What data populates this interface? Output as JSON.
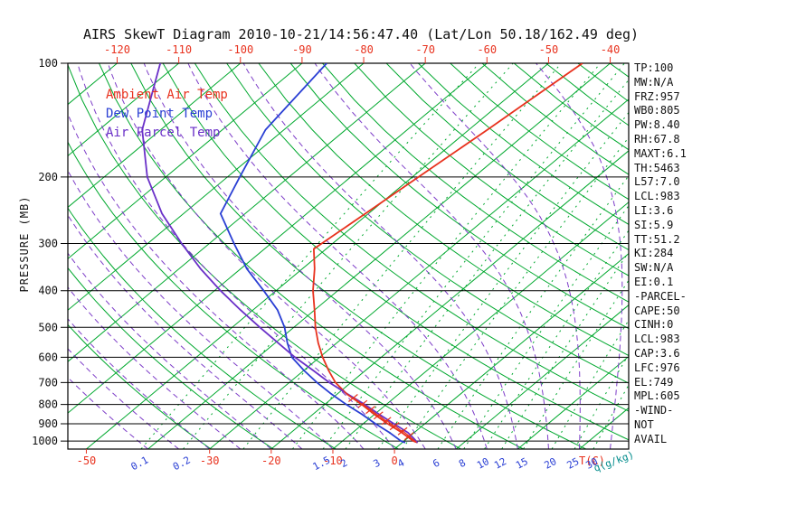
{
  "title": "AIRS SkewT Diagram 2010-10-21/14:56:47.40 (Lat/Lon 50.18/162.49 deg)",
  "legend": {
    "items": [
      {
        "label": "Ambient Air Temp",
        "color": "#e8321e"
      },
      {
        "label": "Dew Point Temp",
        "color": "#2a3fd4"
      },
      {
        "label": "Air Parcel Temp",
        "color": "#6a30c8"
      }
    ]
  },
  "axes": {
    "pressure_label": "PRESSURE (MB)",
    "pressure_ticks": [
      100,
      200,
      300,
      400,
      500,
      600,
      700,
      800,
      900,
      1000
    ],
    "top_temp_ticks": [
      -120,
      -110,
      -100,
      -90,
      -80,
      -70,
      -60,
      -50,
      -40
    ],
    "bottom_temp_ticks": [
      -50,
      -30,
      -20,
      -10,
      0
    ],
    "bottom_temp_unit": "T(C)",
    "mixing_ratio_ticks": [
      0.1,
      0.2,
      1.5,
      2,
      3,
      4,
      6,
      8,
      10,
      12,
      15,
      20,
      25,
      30
    ],
    "mixing_ratio_unit": "q(g/kg)"
  },
  "stats_panel": {
    "lines": [
      "TP:100",
      "MW:N/A",
      "FRZ:957",
      "WB0:805",
      "PW:8.40",
      "RH:67.8",
      "MAXT:6.1",
      "TH:5463",
      "L57:7.0",
      "LCL:983",
      "LI:3.6",
      "SI:5.9",
      "TT:51.2",
      "KI:284",
      "SW:N/A",
      "EI:0.1",
      "-PARCEL-",
      "CAPE:50",
      "CINH:0",
      "LCL:983",
      "CAP:3.6",
      "LFC:976",
      "EL:749",
      "MPL:605",
      "-WIND-",
      "NOT",
      "AVAIL"
    ]
  },
  "chart_data": {
    "type": "line",
    "subtype": "skewt-logp-sounding",
    "title": "AIRS SkewT Diagram 2010-10-21/14:56:47.40 (Lat/Lon 50.18/162.49 deg)",
    "xlabel": "T(C)",
    "ylabel": "PRESSURE (MB)",
    "y_scale": "log",
    "pressure_range_mb": [
      100,
      1050
    ],
    "temp_at_bottom_left_C": -53,
    "temp_at_bottom_right_C": 38,
    "skew_C_per_full_height": -75,
    "isotherm_step_C": 10,
    "dry_adiabats_K": {
      "start": 240,
      "end": 460,
      "step": 10
    },
    "moist_adiabats_start_C": {
      "start": -40,
      "end": 45,
      "step": 5
    },
    "mixing_ratio_lines_g_per_kg": [
      0.1,
      0.2,
      0.5,
      1,
      1.5,
      2,
      3,
      4,
      6,
      8,
      10,
      12,
      15,
      20,
      25,
      30
    ],
    "cape_hatch_region_mb": [
      985,
      755
    ],
    "colors": {
      "isotherm": "#00a82e",
      "dry_adiabat": "#00a82e",
      "moist_adiabat": "#7d3cc8",
      "mixing_ratio": "#00a82e",
      "pressure_line": "#000000",
      "top_axis_text": "#e8321e",
      "bottom_temp_text": "#e8321e",
      "mixing_text": "#2a3fd4",
      "mixing_unit_text": "#008b8b",
      "ambient": "#e8321e",
      "dewpoint": "#2a3fd4",
      "parcel": "#6a30c8",
      "cape_hatch": "#e8321e"
    },
    "series": [
      {
        "name": "Ambient Air Temp",
        "points_mb_C": [
          [
            1010,
            2.5
          ],
          [
            1000,
            1.5
          ],
          [
            950,
            -2
          ],
          [
            900,
            -6
          ],
          [
            850,
            -10
          ],
          [
            800,
            -14
          ],
          [
            750,
            -18.5
          ],
          [
            700,
            -22.5
          ],
          [
            650,
            -26
          ],
          [
            600,
            -29.5
          ],
          [
            550,
            -33
          ],
          [
            500,
            -36.5
          ],
          [
            450,
            -40
          ],
          [
            400,
            -44
          ],
          [
            350,
            -48
          ],
          [
            310,
            -52
          ],
          [
            250,
            -50.5
          ],
          [
            200,
            -49
          ],
          [
            150,
            -47
          ],
          [
            100,
            -44.5
          ]
        ]
      },
      {
        "name": "Dew Point Temp",
        "points_mb_C": [
          [
            1010,
            0.5
          ],
          [
            1000,
            -0.5
          ],
          [
            950,
            -4
          ],
          [
            900,
            -8
          ],
          [
            850,
            -12
          ],
          [
            800,
            -16.5
          ],
          [
            750,
            -21
          ],
          [
            700,
            -25.5
          ],
          [
            650,
            -30
          ],
          [
            600,
            -34.5
          ],
          [
            550,
            -38
          ],
          [
            500,
            -41.5
          ],
          [
            450,
            -46
          ],
          [
            400,
            -52
          ],
          [
            350,
            -59
          ],
          [
            300,
            -66
          ],
          [
            250,
            -74
          ],
          [
            200,
            -78
          ],
          [
            150,
            -83
          ],
          [
            100,
            -86
          ]
        ]
      },
      {
        "name": "Air Parcel Temp",
        "points_mb_C": [
          [
            1010,
            2.5
          ],
          [
            983,
            1
          ],
          [
            950,
            -1
          ],
          [
            900,
            -5
          ],
          [
            850,
            -9.2
          ],
          [
            800,
            -13.5
          ],
          [
            750,
            -18.4
          ],
          [
            700,
            -23.5
          ],
          [
            650,
            -28.5
          ],
          [
            600,
            -34
          ],
          [
            550,
            -39.5
          ],
          [
            500,
            -45.5
          ],
          [
            450,
            -52
          ],
          [
            400,
            -59
          ],
          [
            350,
            -66.5
          ],
          [
            300,
            -74.5
          ],
          [
            250,
            -83.5
          ],
          [
            200,
            -93
          ],
          [
            150,
            -103
          ],
          [
            100,
            -113
          ]
        ]
      }
    ]
  }
}
